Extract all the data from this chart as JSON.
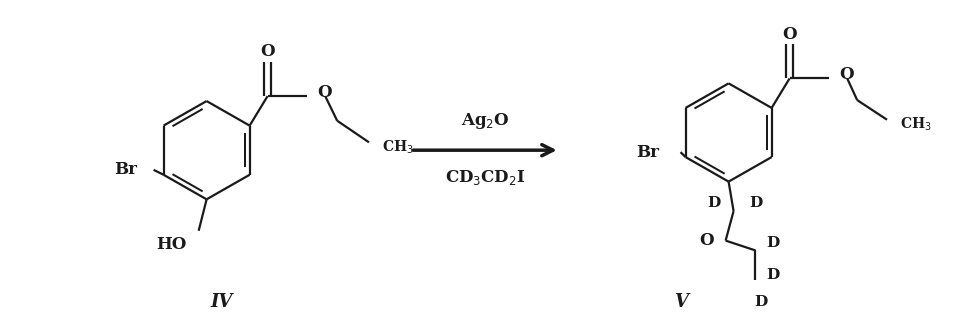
{
  "background_color": "#ffffff",
  "figsize": [
    9.72,
    3.22
  ],
  "dpi": 100,
  "arrow_label_top": "Ag$_2$O",
  "arrow_label_bottom": "CD$_3$CD$_2$I",
  "compound_iv_label": "IV",
  "compound_v_label": "V",
  "line_color": "#1a1a1a",
  "line_width": 1.6,
  "font_size_atom": 11,
  "font_size_compound": 13
}
